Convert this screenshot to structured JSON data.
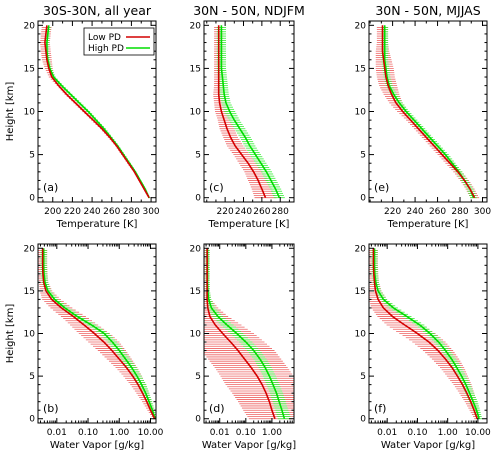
{
  "colors": {
    "low_pd": "#d40000",
    "high_pd": "#00dd00",
    "low_pd_bar": "#ee6060",
    "high_pd_bar": "#33ee33",
    "axis": "#000000"
  },
  "chart_data": [
    {
      "type": "line",
      "panel": "(a)",
      "title": "30S-30N, all year",
      "xlabel": "Temperature [K]",
      "ylabel": "Height [km]",
      "xscale": "linear",
      "xlim": [
        185,
        305
      ],
      "ylim": [
        -0.5,
        20.5
      ],
      "xticks": [
        200,
        220,
        240,
        260,
        280,
        300
      ],
      "xticklabels": [
        "200",
        "220",
        "240",
        "260",
        "280",
        "300"
      ],
      "yticks": [
        0,
        5,
        10,
        15,
        20
      ],
      "yticklabels": [
        "0",
        "5",
        "10",
        "15",
        "20"
      ],
      "legend": {
        "placement": "top-right",
        "entries": [
          "Low PD",
          "High PD"
        ]
      },
      "series": [
        {
          "name": "Low PD",
          "color": "low_pd",
          "y": [
            0,
            1,
            2,
            3,
            4,
            5,
            6,
            7,
            8,
            9,
            10,
            11,
            12,
            13,
            14,
            15,
            16,
            17,
            18,
            19,
            20
          ],
          "x": [
            298,
            293,
            288,
            283,
            277,
            271,
            265,
            258,
            250,
            241,
            232,
            223,
            214,
            206,
            199,
            196,
            194,
            193,
            192,
            193,
            194
          ],
          "err": [
            1,
            1,
            1,
            1,
            1.5,
            1.5,
            1.5,
            2,
            2,
            2,
            2,
            2,
            2,
            2,
            3,
            4,
            5,
            5,
            5,
            5,
            5
          ]
        },
        {
          "name": "High PD",
          "color": "high_pd",
          "y": [
            0,
            1,
            2,
            3,
            4,
            5,
            6,
            7,
            8,
            9,
            10,
            11,
            12,
            13,
            14,
            15,
            16,
            17,
            18,
            19,
            20
          ],
          "x": [
            298,
            294,
            289,
            284,
            278,
            272,
            266,
            259,
            252,
            244,
            236,
            227,
            218,
            209,
            201,
            197,
            195,
            194,
            194,
            195,
            196
          ],
          "err": [
            1,
            1,
            1,
            1,
            1.5,
            1.5,
            1.5,
            2,
            2,
            2,
            2,
            2,
            2,
            2,
            2,
            2,
            2,
            2,
            2,
            2,
            2
          ]
        }
      ]
    },
    {
      "type": "line",
      "panel": "(c)",
      "title": "30N - 50N, NDJFM",
      "xlabel": "Temperature [K]",
      "ylabel": "",
      "xscale": "linear",
      "xlim": [
        197,
        295
      ],
      "ylim": [
        -0.5,
        20.5
      ],
      "xticks": [
        220,
        240,
        260,
        280
      ],
      "xticklabels": [
        "220",
        "240",
        "260",
        "280"
      ],
      "yticks": [
        0,
        5,
        10,
        15,
        20
      ],
      "yticklabels": [
        "0",
        "5",
        "10",
        "15",
        "20"
      ],
      "series": [
        {
          "name": "Low PD",
          "color": "low_pd",
          "y": [
            0,
            1,
            2,
            3,
            4,
            5,
            6,
            7,
            8,
            9,
            10,
            11,
            12,
            13,
            14,
            15,
            16,
            17,
            18,
            19,
            20
          ],
          "x": [
            264,
            260,
            256,
            251,
            245,
            238,
            231,
            226,
            222,
            219,
            216,
            214,
            213,
            213,
            213,
            213,
            213,
            213,
            213,
            213,
            213
          ],
          "err": [
            12,
            11,
            11,
            10,
            10,
            9,
            9,
            8,
            8,
            7,
            7,
            6,
            6,
            5,
            5,
            5,
            5,
            5,
            5,
            5,
            5
          ]
        },
        {
          "name": "High PD",
          "color": "high_pd",
          "y": [
            0,
            1,
            2,
            3,
            4,
            5,
            6,
            7,
            8,
            9,
            10,
            11,
            12,
            13,
            14,
            15,
            16,
            17,
            18,
            19,
            20
          ],
          "x": [
            279,
            275,
            270,
            265,
            259,
            253,
            247,
            242,
            236,
            230,
            225,
            221,
            219,
            218,
            217,
            216,
            216,
            216,
            216,
            216,
            216
          ],
          "err": [
            6,
            6,
            6,
            6,
            6,
            6,
            6,
            6,
            6,
            6,
            6,
            5,
            5,
            5,
            5,
            5,
            5,
            5,
            5,
            5,
            5
          ]
        }
      ]
    },
    {
      "type": "line",
      "panel": "(e)",
      "title": "30N - 50N, MJJAS",
      "xlabel": "Temperature [K]",
      "ylabel": "",
      "xscale": "linear",
      "xlim": [
        199,
        304
      ],
      "ylim": [
        -0.5,
        20.5
      ],
      "xticks": [
        220,
        240,
        260,
        280,
        300
      ],
      "xticklabels": [
        "220",
        "240",
        "260",
        "280",
        "300"
      ],
      "yticks": [
        0,
        5,
        10,
        15,
        20
      ],
      "yticklabels": [
        "0",
        "5",
        "10",
        "15",
        "20"
      ],
      "series": [
        {
          "name": "Low PD",
          "color": "low_pd",
          "y": [
            0,
            1,
            2,
            3,
            4,
            5,
            6,
            7,
            8,
            9,
            10,
            11,
            12,
            13,
            14,
            15,
            16,
            17,
            18,
            19,
            20
          ],
          "x": [
            293,
            289,
            284,
            278,
            271,
            264,
            257,
            250,
            243,
            236,
            229,
            223,
            219,
            216,
            214,
            213,
            212,
            211,
            211,
            211,
            211
          ],
          "err": [
            4,
            4,
            4,
            4,
            4,
            4,
            4,
            4,
            4,
            4,
            5,
            6,
            7,
            8,
            8,
            8,
            7,
            6,
            5,
            5,
            5
          ]
        },
        {
          "name": "High PD",
          "color": "high_pd",
          "y": [
            0,
            1,
            2,
            3,
            4,
            5,
            6,
            7,
            8,
            9,
            10,
            11,
            12,
            13,
            14,
            15,
            16,
            17,
            18,
            19,
            20
          ],
          "x": [
            292,
            289,
            284,
            279,
            273,
            267,
            260,
            253,
            246,
            239,
            232,
            226,
            221,
            217,
            215,
            214,
            213,
            213,
            213,
            213,
            213
          ],
          "err": [
            3,
            3,
            3,
            3,
            3,
            3,
            3,
            3,
            3,
            3,
            3,
            3,
            3,
            3,
            3,
            3,
            3,
            3,
            3,
            3,
            3
          ]
        }
      ]
    },
    {
      "type": "line",
      "panel": "(b)",
      "title": "",
      "xlabel": "Water Vapor [g/kg]",
      "ylabel": "Height [km]",
      "xscale": "log",
      "xlim": [
        0.0025,
        15
      ],
      "ylim": [
        -0.5,
        20.5
      ],
      "xticks": [
        0.01,
        0.1,
        1.0,
        10.0
      ],
      "xticklabels": [
        "0.01",
        "0.10",
        "1.00",
        "10.00"
      ],
      "yticks": [
        0,
        5,
        10,
        15,
        20
      ],
      "yticklabels": [
        "0",
        "5",
        "10",
        "15",
        "20"
      ],
      "series": [
        {
          "name": "Low PD",
          "color": "low_pd",
          "y": [
            0,
            1,
            2,
            3,
            4,
            5,
            6,
            7,
            8,
            9,
            10,
            11,
            12,
            13,
            14,
            15,
            16,
            17,
            18,
            19,
            20
          ],
          "x": [
            13.5,
            10,
            7.6,
            5.6,
            4.0,
            2.7,
            1.7,
            1.0,
            0.58,
            0.32,
            0.16,
            0.075,
            0.034,
            0.014,
            0.0068,
            0.0045,
            0.0038,
            0.0036,
            0.0035,
            0.0035,
            0.0035
          ],
          "err": [
            0.05,
            0.1,
            0.15,
            0.2,
            0.25,
            0.3,
            0.35,
            0.4,
            0.45,
            0.5,
            0.5,
            0.45,
            0.4,
            0.35,
            0.3,
            0.2,
            0.15,
            0.15,
            0.15,
            0.15,
            0.15
          ]
        },
        {
          "name": "High PD",
          "color": "high_pd",
          "y": [
            0,
            1,
            2,
            3,
            4,
            5,
            6,
            7,
            8,
            9,
            10,
            11,
            12,
            13,
            14,
            15,
            16,
            17,
            18,
            19,
            20
          ],
          "x": [
            14,
            11.5,
            9,
            7,
            5.2,
            3.7,
            2.5,
            1.6,
            1.0,
            0.6,
            0.33,
            0.13,
            0.045,
            0.018,
            0.0085,
            0.0052,
            0.0042,
            0.0039,
            0.0038,
            0.0038,
            0.0038
          ],
          "err": [
            0.05,
            0.08,
            0.1,
            0.12,
            0.15,
            0.15,
            0.15,
            0.15,
            0.15,
            0.15,
            0.15,
            0.15,
            0.15,
            0.15,
            0.12,
            0.1,
            0.1,
            0.1,
            0.1,
            0.1,
            0.1
          ]
        }
      ]
    },
    {
      "type": "line",
      "panel": "(d)",
      "title": "",
      "xlabel": "Water Vapor [g/kg]",
      "ylabel": "",
      "xscale": "log",
      "xlim": [
        0.0025,
        7
      ],
      "ylim": [
        -0.5,
        20.5
      ],
      "xticks": [
        0.01,
        0.1,
        1.0
      ],
      "xticklabels": [
        "0.01",
        "0.10",
        "1.00"
      ],
      "yticks": [
        0,
        5,
        10,
        15,
        20
      ],
      "yticklabels": [
        "0",
        "5",
        "10",
        "15",
        "20"
      ],
      "series": [
        {
          "name": "Low PD",
          "color": "low_pd",
          "y": [
            0,
            1,
            2,
            3,
            4,
            5,
            6,
            7,
            8,
            9,
            10,
            11,
            12,
            13,
            14,
            15,
            16,
            17,
            18,
            19,
            20
          ],
          "x": [
            1.3,
            1.0,
            0.8,
            0.6,
            0.42,
            0.27,
            0.16,
            0.09,
            0.05,
            0.026,
            0.013,
            0.0068,
            0.0042,
            0.0035,
            0.0033,
            0.0033,
            0.0033,
            0.0033,
            0.0033,
            0.0033,
            0.0033
          ],
          "err": [
            1.0,
            1.1,
            1.2,
            1.3,
            1.4,
            1.4,
            1.4,
            1.4,
            1.4,
            1.3,
            1.2,
            1.0,
            0.7,
            0.4,
            0.15,
            0.1,
            0.1,
            0.1,
            0.1,
            0.1,
            0.1
          ]
        },
        {
          "name": "High PD",
          "color": "high_pd",
          "y": [
            0,
            1,
            2,
            3,
            4,
            5,
            6,
            7,
            8,
            9,
            10,
            11,
            12,
            13,
            14,
            15,
            16,
            17,
            18,
            19,
            20
          ],
          "x": [
            3.0,
            2.4,
            1.9,
            1.5,
            1.1,
            0.8,
            0.55,
            0.35,
            0.2,
            0.1,
            0.045,
            0.019,
            0.0085,
            0.0048,
            0.0038,
            0.0035,
            0.0034,
            0.0034,
            0.0034,
            0.0034,
            0.0034
          ],
          "err": [
            0.25,
            0.25,
            0.25,
            0.25,
            0.25,
            0.25,
            0.25,
            0.25,
            0.25,
            0.25,
            0.25,
            0.25,
            0.2,
            0.15,
            0.1,
            0.08,
            0.08,
            0.08,
            0.08,
            0.08,
            0.08
          ]
        }
      ]
    },
    {
      "type": "line",
      "panel": "(f)",
      "title": "",
      "xlabel": "Water Vapor [g/kg]",
      "ylabel": "",
      "xscale": "log",
      "xlim": [
        0.0025,
        20
      ],
      "ylim": [
        -0.5,
        20.5
      ],
      "xticks": [
        0.01,
        0.1,
        1.0,
        10.0
      ],
      "xticklabels": [
        "0.01",
        "0.10",
        "1.00",
        "10.00"
      ],
      "yticks": [
        0,
        5,
        10,
        15,
        20
      ],
      "yticklabels": [
        "0",
        "5",
        "10",
        "15",
        "20"
      ],
      "series": [
        {
          "name": "Low PD",
          "color": "low_pd",
          "y": [
            0,
            1,
            2,
            3,
            4,
            5,
            6,
            7,
            8,
            9,
            10,
            11,
            12,
            13,
            14,
            15,
            16,
            17,
            18,
            19,
            20
          ],
          "x": [
            9.5,
            7.5,
            5.8,
            4.3,
            3.1,
            2.1,
            1.4,
            0.85,
            0.48,
            0.24,
            0.1,
            0.038,
            0.015,
            0.0075,
            0.005,
            0.0041,
            0.0038,
            0.0036,
            0.0035,
            0.0035,
            0.0035
          ],
          "err": [
            0.1,
            0.15,
            0.2,
            0.25,
            0.3,
            0.35,
            0.4,
            0.45,
            0.5,
            0.55,
            0.6,
            0.6,
            0.5,
            0.4,
            0.3,
            0.2,
            0.15,
            0.15,
            0.15,
            0.15,
            0.15
          ]
        },
        {
          "name": "High PD",
          "color": "high_pd",
          "y": [
            0,
            1,
            2,
            3,
            4,
            5,
            6,
            7,
            8,
            9,
            10,
            11,
            12,
            13,
            14,
            15,
            16,
            17,
            18,
            19,
            20
          ],
          "x": [
            11,
            9,
            7,
            5.3,
            4.0,
            2.9,
            2.0,
            1.35,
            0.85,
            0.5,
            0.26,
            0.12,
            0.045,
            0.016,
            0.0075,
            0.005,
            0.0042,
            0.0039,
            0.0038,
            0.0038,
            0.0038
          ],
          "err": [
            0.1,
            0.12,
            0.15,
            0.15,
            0.15,
            0.15,
            0.15,
            0.15,
            0.15,
            0.15,
            0.15,
            0.15,
            0.15,
            0.15,
            0.12,
            0.1,
            0.1,
            0.1,
            0.1,
            0.1,
            0.1
          ]
        }
      ]
    }
  ]
}
